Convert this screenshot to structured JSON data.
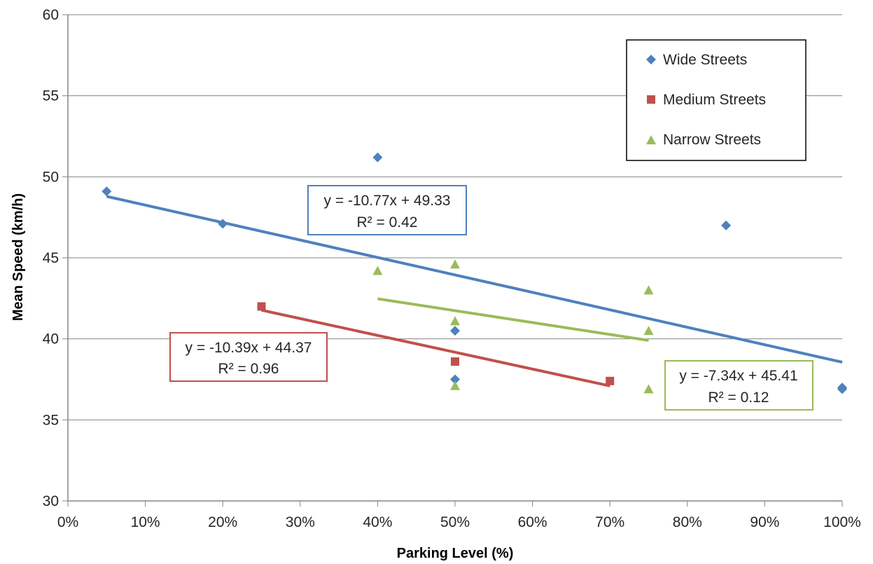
{
  "chart_data": {
    "type": "scatter",
    "xlabel": "Parking Level (%)",
    "ylabel": "Mean Speed (km/h)",
    "xlim": [
      0,
      1
    ],
    "ylim": [
      30,
      60
    ],
    "x_ticks": [
      "0%",
      "10%",
      "20%",
      "30%",
      "40%",
      "50%",
      "60%",
      "70%",
      "80%",
      "90%",
      "100%"
    ],
    "y_ticks": [
      "30",
      "35",
      "40",
      "45",
      "50",
      "55",
      "60"
    ],
    "grid": "horizontal",
    "legend_position": "top-right",
    "series": [
      {
        "name": "Wide Streets",
        "marker": "diamond",
        "color": "#4F81BD",
        "points": [
          [
            0.05,
            49.1
          ],
          [
            0.2,
            47.1
          ],
          [
            0.4,
            51.2
          ],
          [
            0.5,
            40.5
          ],
          [
            0.5,
            37.5
          ],
          [
            0.85,
            47.0
          ],
          [
            1.0,
            37.0
          ],
          [
            1.0,
            36.9
          ]
        ],
        "trendline": {
          "slope": -10.77,
          "intercept": 49.33,
          "x_range": [
            0.05,
            1.0
          ],
          "equation": "y = -10.77x + 49.33",
          "r2": "R² = 0.42"
        }
      },
      {
        "name": "Medium Streets",
        "marker": "square",
        "color": "#C0504D",
        "points": [
          [
            0.25,
            42.0
          ],
          [
            0.5,
            38.6
          ],
          [
            0.7,
            37.4
          ]
        ],
        "trendline": {
          "slope": -10.39,
          "intercept": 44.37,
          "x_range": [
            0.25,
            0.7
          ],
          "equation": "y = -10.39x + 44.37",
          "r2": "R² = 0.96"
        }
      },
      {
        "name": "Narrow Streets",
        "marker": "triangle",
        "color": "#9BBB59",
        "points": [
          [
            0.4,
            44.2
          ],
          [
            0.5,
            44.6
          ],
          [
            0.5,
            41.1
          ],
          [
            0.5,
            37.1
          ],
          [
            0.75,
            43.0
          ],
          [
            0.75,
            40.5
          ],
          [
            0.75,
            36.9
          ]
        ],
        "trendline": {
          "slope": -7.34,
          "intercept": 45.41,
          "x_range": [
            0.4,
            0.75
          ],
          "equation": "y = -7.34x + 45.41",
          "r2": "R² = 0.12"
        }
      }
    ]
  }
}
